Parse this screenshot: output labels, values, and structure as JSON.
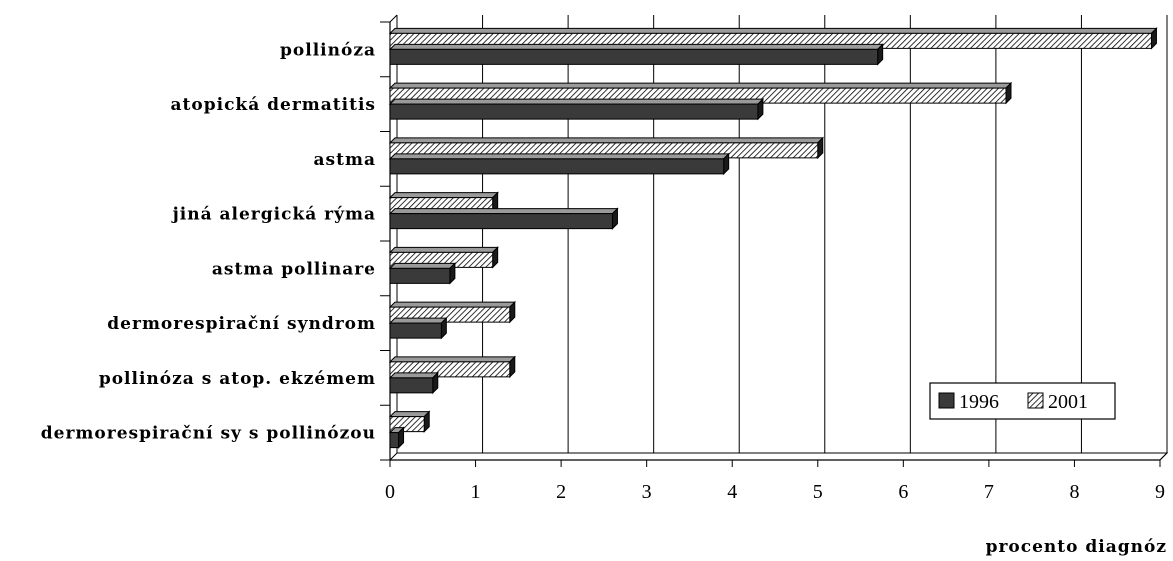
{
  "chart_data": {
    "type": "bar",
    "orientation": "horizontal",
    "categories": [
      "pollinóza",
      "atopická dermatitis",
      "astma",
      "jiná alergická rýma",
      "astma pollinare",
      "dermorespirační syndrom",
      "pollinóza s atop. ekzémem",
      "dermorespirační sy s pollinózou"
    ],
    "series": [
      {
        "name": "1996",
        "values": [
          5.7,
          4.3,
          3.9,
          2.6,
          0.7,
          0.6,
          0.5,
          0.1
        ],
        "color": "#3a3a3a",
        "pattern": "solid"
      },
      {
        "name": "2001",
        "values": [
          8.9,
          7.2,
          5.0,
          1.2,
          1.2,
          1.4,
          1.4,
          0.4
        ],
        "color": "#ffffff",
        "pattern": "diagonal-hatch"
      }
    ],
    "xlim": [
      0,
      9
    ],
    "x_ticks": [
      "0",
      "1",
      "2",
      "3",
      "4",
      "5",
      "6",
      "7",
      "8",
      "9"
    ],
    "xlabel": "procento diagnóz",
    "grid": "vertical",
    "legend_position": "bottom-right",
    "style": "3d"
  }
}
